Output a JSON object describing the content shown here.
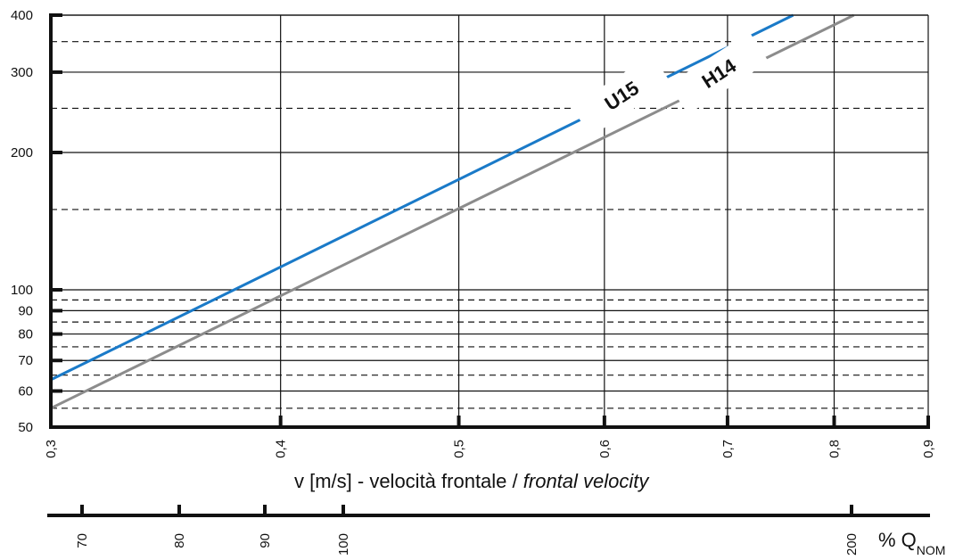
{
  "chart_data": {
    "type": "line",
    "x_axis": {
      "label_main": "v [m/s] - velocità frontale /",
      "label_italic": "frontal velocity",
      "range": [
        0.3,
        0.9
      ],
      "ticks": [
        0.3,
        0.4,
        0.5,
        0.6,
        0.7,
        0.8,
        0.9
      ],
      "tick_labels": [
        "0,3",
        "0,4",
        "0,5",
        "0,6",
        "0,7",
        "0,8",
        "0,9"
      ],
      "scale": "log"
    },
    "y_axis": {
      "label": "",
      "range": [
        50,
        400
      ],
      "scale": "log",
      "ticks": [
        50,
        60,
        70,
        80,
        90,
        100,
        200,
        300,
        400
      ],
      "tick_labels": [
        "50",
        "60",
        "70",
        "80",
        "90",
        "100",
        "200",
        "300",
        "400"
      ],
      "dashed_grid": [
        55,
        65,
        75,
        85,
        95,
        150,
        250,
        350
      ]
    },
    "secondary_x_axis": {
      "label_prefix": "% Q",
      "label_sub": "NOM",
      "ticks": [
        70,
        80,
        90,
        100,
        200
      ],
      "tick_labels": [
        "70",
        "80",
        "90",
        "100",
        "200"
      ]
    },
    "series": [
      {
        "name": "U15",
        "color": "#1a7ac8",
        "x": [
          0.3,
          0.76
        ],
        "y": [
          63.5,
          400
        ]
      },
      {
        "name": "H14",
        "color": "#8c8c8c",
        "x": [
          0.3,
          0.82
        ],
        "y": [
          55,
          400
        ]
      }
    ],
    "grid": true,
    "legend": "inline"
  }
}
